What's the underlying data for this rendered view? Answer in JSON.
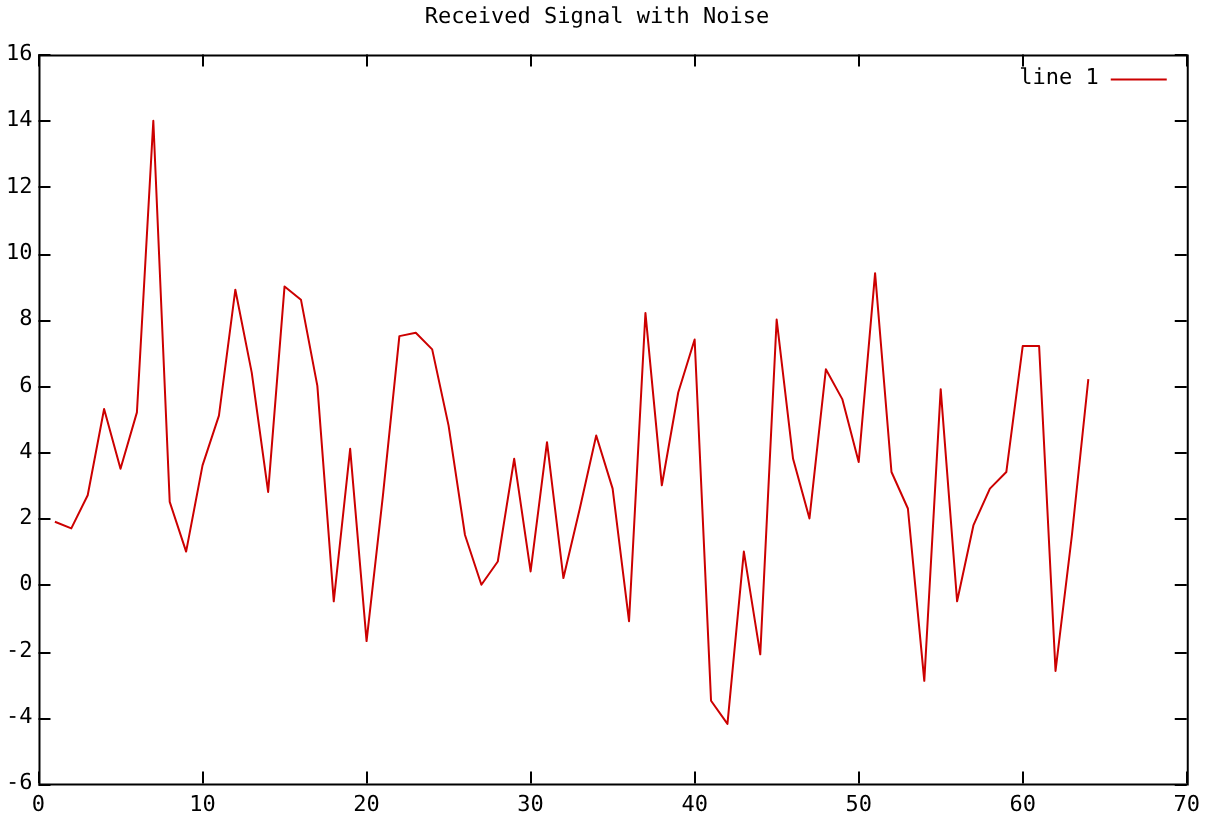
{
  "chart_data": {
    "type": "line",
    "title": "Received Signal with Noise",
    "x": [
      1,
      2,
      3,
      4,
      5,
      6,
      7,
      8,
      9,
      10,
      11,
      12,
      13,
      14,
      15,
      16,
      17,
      18,
      19,
      20,
      21,
      22,
      23,
      24,
      25,
      26,
      27,
      28,
      29,
      30,
      31,
      32,
      33,
      34,
      35,
      36,
      37,
      38,
      39,
      40,
      41,
      42,
      43,
      44,
      45,
      46,
      47,
      48,
      49,
      50,
      51,
      52,
      53,
      54,
      55,
      56,
      57,
      58,
      59,
      60,
      61,
      62,
      63,
      64
    ],
    "series": [
      {
        "name": "line 1",
        "color": "#cc0000",
        "values": [
          1.9,
          1.7,
          2.7,
          5.3,
          3.5,
          5.2,
          14.0,
          2.5,
          1.0,
          3.6,
          5.1,
          8.9,
          6.4,
          2.8,
          9.0,
          8.6,
          6.0,
          -0.5,
          4.1,
          -1.7,
          2.7,
          7.5,
          7.6,
          7.1,
          4.8,
          1.5,
          0.0,
          0.7,
          3.8,
          0.4,
          4.3,
          0.2,
          2.3,
          4.5,
          2.9,
          -1.1,
          8.2,
          3.0,
          5.8,
          7.4,
          -3.5,
          -4.2,
          1.0,
          -2.1,
          8.0,
          3.8,
          2.0,
          6.5,
          5.6,
          3.7,
          9.4,
          3.4,
          2.3,
          -2.9,
          5.9,
          -0.5,
          1.8,
          2.9,
          3.4,
          7.2,
          7.2,
          -2.6,
          1.5,
          6.2
        ]
      }
    ],
    "xlim": [
      0,
      70
    ],
    "xticks": [
      0,
      10,
      20,
      30,
      40,
      50,
      60,
      70
    ],
    "ylim": [
      -6,
      16
    ],
    "yticks": [
      -6,
      -4,
      -2,
      0,
      2,
      4,
      6,
      8,
      10,
      12,
      14,
      16
    ],
    "grid": false,
    "legend": "top right",
    "marker": "none",
    "line_style": "solid"
  }
}
